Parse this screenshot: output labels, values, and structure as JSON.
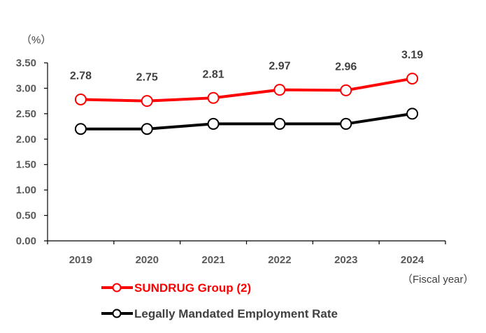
{
  "chart_data": {
    "type": "line",
    "categories": [
      "2019",
      "2020",
      "2021",
      "2022",
      "2023",
      "2024"
    ],
    "yticks": [
      "0.00",
      "0.50",
      "1.00",
      "1.50",
      "2.00",
      "2.50",
      "3.00",
      "3.50"
    ],
    "ylim": [
      0,
      3.5
    ],
    "ylabel": "（%）",
    "xlabel": "（Fiscal year）",
    "grid": false,
    "legend_position": "bottom-left",
    "series": [
      {
        "name": "SUNDRUG Group (2)",
        "values": [
          2.78,
          2.75,
          2.81,
          2.97,
          2.96,
          3.19
        ],
        "data_labels": [
          "2.78",
          "2.75",
          "2.81",
          "2.97",
          "2.96",
          "3.19"
        ],
        "color": "#ff0000",
        "marker": "hollow-circle"
      },
      {
        "name": "Legally Mandated Employment Rate",
        "values": [
          2.2,
          2.2,
          2.3,
          2.3,
          2.3,
          2.5
        ],
        "color": "#000000",
        "marker": "hollow-circle"
      }
    ]
  }
}
